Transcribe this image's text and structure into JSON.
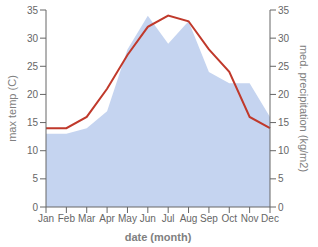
{
  "chart_data": {
    "type": "line",
    "categories": [
      "Jan",
      "Feb",
      "Mar",
      "Apr",
      "May",
      "Jun",
      "Jul",
      "Aug",
      "Sep",
      "Oct",
      "Nov",
      "Dec"
    ],
    "xlabel": "date (month)",
    "ylabel": "max temp (C)",
    "y2label": "med. precipitation (kg/m2)",
    "ylim": [
      0,
      35
    ],
    "yticks": [
      0,
      5,
      10,
      15,
      20,
      25,
      30,
      35
    ],
    "y2lim": [
      0,
      35
    ],
    "y2ticks": [
      0,
      5,
      10,
      15,
      20,
      25,
      30,
      35
    ],
    "grid": false,
    "series": [
      {
        "type": "area",
        "axis": "y2",
        "color": "#c5d4f0",
        "values": [
          13,
          13,
          14,
          17,
          28,
          34,
          29,
          33,
          24,
          22,
          22,
          16
        ]
      },
      {
        "type": "line",
        "axis": "y",
        "color": "#c0392b",
        "values": [
          14,
          14,
          16,
          21,
          27,
          32,
          34,
          33,
          28,
          24,
          16,
          14
        ]
      }
    ]
  }
}
